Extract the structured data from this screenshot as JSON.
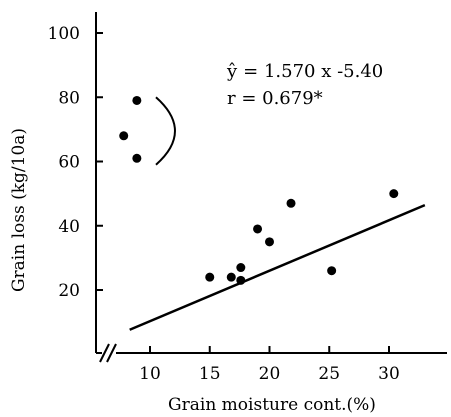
{
  "chart_data": {
    "type": "scatter",
    "xlabel": "Grain moisture cont.(%)",
    "ylabel": "Grain loss (kg/10a)",
    "xlim": [
      6,
      33
    ],
    "ylim": [
      0,
      105
    ],
    "x_ticks": [
      10,
      15,
      20,
      25,
      30
    ],
    "x_tick_labels": [
      "10",
      "15",
      "20",
      "25",
      "30"
    ],
    "y_ticks": [
      20,
      40,
      60,
      80,
      100
    ],
    "y_tick_labels": [
      "20",
      "40",
      "60",
      "80",
      "100"
    ],
    "x_axis_break": true,
    "grid": false,
    "points": [
      {
        "x": 7.8,
        "y": 68
      },
      {
        "x": 8.9,
        "y": 79
      },
      {
        "x": 8.9,
        "y": 61
      },
      {
        "x": 15.0,
        "y": 24
      },
      {
        "x": 16.8,
        "y": 24
      },
      {
        "x": 17.6,
        "y": 27
      },
      {
        "x": 17.6,
        "y": 23
      },
      {
        "x": 19.0,
        "y": 39
      },
      {
        "x": 20.0,
        "y": 35
      },
      {
        "x": 21.8,
        "y": 47
      },
      {
        "x": 25.2,
        "y": 26
      },
      {
        "x": 30.4,
        "y": 50
      }
    ],
    "outlier_group_bracket": {
      "x": 10.5,
      "y_top": 80,
      "y_bottom": 59
    },
    "regression_line": {
      "slope": 1.57,
      "intercept": -5.4,
      "x_start": 8.3,
      "x_end": 33
    },
    "annotations": {
      "equation_lhs": "ŷ",
      "equation_rhs": "= 1.570 x  -5.40",
      "r_text": "r = 0.679*"
    }
  }
}
